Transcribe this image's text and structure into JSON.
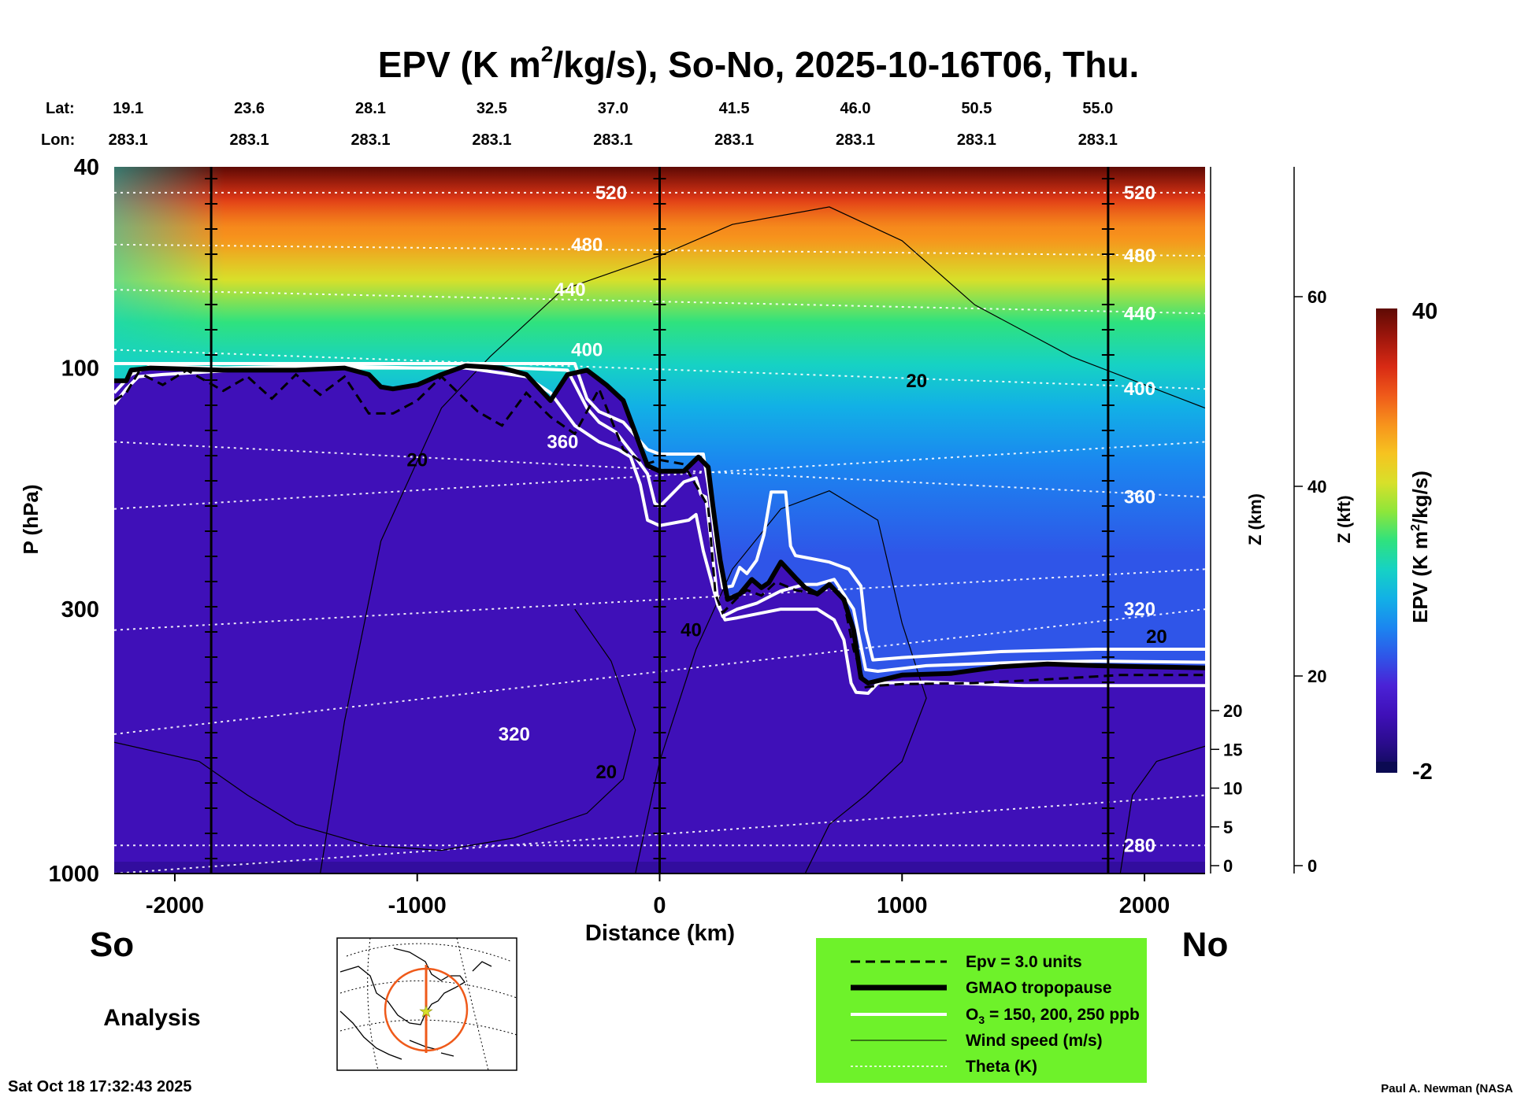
{
  "chart_data": {
    "type": "heatmap",
    "title": "EPV (K m2/kg/s), So-No, 2025-10-16T06, Thu.",
    "title_parts": {
      "pre": "EPV (K m",
      "sup": "2",
      "post": "/kg/s), So-No, 2025-10-16T06, Thu."
    },
    "xlabel": "Distance (km)",
    "ylabel": "P (hPa)",
    "z_km_label": "Z (km)",
    "z_kft_label": "Z (kft)",
    "colorbar_label_parts": {
      "pre": "EPV (K m",
      "sup": "2",
      "post": "/kg/s)"
    },
    "xlim": [
      -2250,
      2250
    ],
    "ylim_hpa": [
      1000,
      40
    ],
    "x_ticks": [
      {
        "value": -2000,
        "label": "-2000"
      },
      {
        "value": -1000,
        "label": "-1000"
      },
      {
        "value": 0,
        "label": "0"
      },
      {
        "value": 1000,
        "label": "1000"
      },
      {
        "value": 2000,
        "label": "2000"
      }
    ],
    "p_ticks": [
      {
        "value": 40,
        "label": "40"
      },
      {
        "value": 100,
        "label": "100"
      },
      {
        "value": 300,
        "label": "300"
      },
      {
        "value": 1000,
        "label": "1000"
      }
    ],
    "z_km_ticks": [
      {
        "value": 20,
        "label": "20"
      },
      {
        "value": 15,
        "label": "15"
      },
      {
        "value": 10,
        "label": "10"
      },
      {
        "value": 5,
        "label": "5"
      },
      {
        "value": 0,
        "label": "0"
      }
    ],
    "z_kft_ticks": [
      {
        "value": 60,
        "label": "60"
      },
      {
        "value": 40,
        "label": "40"
      },
      {
        "value": 20,
        "label": "20"
      },
      {
        "value": 0,
        "label": "0"
      }
    ],
    "lat_label": "Lat:",
    "lon_label": "Lon:",
    "lats": [
      "19.1",
      "23.6",
      "28.1",
      "32.5",
      "37.0",
      "41.5",
      "46.0",
      "50.5",
      "55.0"
    ],
    "lons": [
      "283.1",
      "283.1",
      "283.1",
      "283.1",
      "283.1",
      "283.1",
      "283.1",
      "283.1",
      "283.1"
    ],
    "lat_positions_km": [
      -2225,
      -1725,
      -1225,
      -725,
      -225,
      275,
      775,
      1275,
      1775
    ],
    "vertical_lines_km": [
      -1850,
      0,
      1850
    ],
    "colorbar": {
      "min": -2,
      "max": 40,
      "min_label": "-2",
      "max_label": "40",
      "colors": [
        "#0b0a52",
        "#2a0c8c",
        "#3f10b8",
        "#4a22d6",
        "#2f55e8",
        "#1b86f0",
        "#12b0e6",
        "#16d2c4",
        "#2fe27e",
        "#8ee63a",
        "#d8e02a",
        "#f6c320",
        "#f7931c",
        "#ef5a1a",
        "#d82a14",
        "#9e160c",
        "#5e0a04"
      ]
    },
    "theta_labels": [
      {
        "x": -200,
        "p": 45,
        "label": "520"
      },
      {
        "x": -300,
        "p": 57,
        "label": "480"
      },
      {
        "x": -370,
        "p": 70,
        "label": "440"
      },
      {
        "x": -300,
        "p": 92,
        "label": "400"
      },
      {
        "x": -400,
        "p": 140,
        "label": "360"
      },
      {
        "x": -600,
        "p": 530,
        "label": "320"
      },
      {
        "x": 1980,
        "p": 45,
        "label": "520"
      },
      {
        "x": 1980,
        "p": 60,
        "label": "480"
      },
      {
        "x": 1980,
        "p": 78,
        "label": "440"
      },
      {
        "x": 1980,
        "p": 110,
        "label": "400"
      },
      {
        "x": 1980,
        "p": 180,
        "label": "360"
      },
      {
        "x": 1980,
        "p": 300,
        "label": "320"
      },
      {
        "x": 1980,
        "p": 880,
        "label": "280"
      }
    ],
    "wind_labels": [
      {
        "x": -1000,
        "p": 152,
        "label": "20"
      },
      {
        "x": 1060,
        "p": 106,
        "label": "20"
      },
      {
        "x": 2050,
        "p": 340,
        "label": "20"
      },
      {
        "x": -220,
        "p": 630,
        "label": "20"
      },
      {
        "x": 130,
        "p": 330,
        "label": "40"
      }
    ],
    "tropopause_gmao": [
      [
        -2250,
        106
      ],
      [
        -2200,
        106
      ],
      [
        -2180,
        101
      ],
      [
        -2100,
        100
      ],
      [
        -1800,
        101
      ],
      [
        -1500,
        101
      ],
      [
        -1300,
        100
      ],
      [
        -1200,
        103
      ],
      [
        -1150,
        109
      ],
      [
        -1100,
        110
      ],
      [
        -1000,
        108
      ],
      [
        -900,
        103
      ],
      [
        -800,
        99
      ],
      [
        -650,
        100
      ],
      [
        -550,
        103
      ],
      [
        -450,
        116
      ],
      [
        -380,
        103
      ],
      [
        -300,
        101
      ],
      [
        -220,
        108
      ],
      [
        -150,
        116
      ],
      [
        -50,
        156
      ],
      [
        0,
        160
      ],
      [
        100,
        160
      ],
      [
        160,
        150
      ],
      [
        200,
        157
      ],
      [
        220,
        188
      ],
      [
        250,
        240
      ],
      [
        280,
        287
      ],
      [
        330,
        280
      ],
      [
        380,
        262
      ],
      [
        420,
        272
      ],
      [
        450,
        266
      ],
      [
        500,
        242
      ],
      [
        560,
        260
      ],
      [
        600,
        272
      ],
      [
        650,
        280
      ],
      [
        700,
        268
      ],
      [
        760,
        287
      ],
      [
        800,
        330
      ],
      [
        830,
        410
      ],
      [
        860,
        420
      ],
      [
        1000,
        405
      ],
      [
        1200,
        402
      ],
      [
        1400,
        390
      ],
      [
        1600,
        385
      ],
      [
        1800,
        388
      ],
      [
        2000,
        390
      ],
      [
        2250,
        392
      ]
    ],
    "epv3_dashed": [
      [
        -2250,
        116
      ],
      [
        -2200,
        112
      ],
      [
        -2150,
        102
      ],
      [
        -2050,
        108
      ],
      [
        -1950,
        101
      ],
      [
        -1800,
        111
      ],
      [
        -1700,
        104
      ],
      [
        -1600,
        115
      ],
      [
        -1500,
        103
      ],
      [
        -1400,
        113
      ],
      [
        -1300,
        104
      ],
      [
        -1200,
        123
      ],
      [
        -1100,
        123
      ],
      [
        -1000,
        116
      ],
      [
        -900,
        104
      ],
      [
        -750,
        122
      ],
      [
        -650,
        130
      ],
      [
        -550,
        112
      ],
      [
        -450,
        125
      ],
      [
        -350,
        135
      ],
      [
        -250,
        110
      ],
      [
        -150,
        145
      ],
      [
        -60,
        155
      ],
      [
        0,
        152
      ],
      [
        100,
        155
      ],
      [
        200,
        188
      ],
      [
        230,
        280
      ],
      [
        260,
        305
      ],
      [
        320,
        285
      ],
      [
        360,
        275
      ],
      [
        420,
        282
      ],
      [
        480,
        265
      ],
      [
        560,
        275
      ],
      [
        640,
        280
      ],
      [
        700,
        268
      ],
      [
        760,
        290
      ],
      [
        800,
        360
      ],
      [
        850,
        428
      ],
      [
        900,
        425
      ],
      [
        1000,
        422
      ],
      [
        1300,
        420
      ],
      [
        1600,
        413
      ],
      [
        1900,
        405
      ],
      [
        2250,
        405
      ]
    ],
    "ozone_contours": [
      [
        [
          -2250,
          98
        ],
        [
          -1800,
          98
        ],
        [
          -1200,
          98
        ],
        [
          -600,
          98
        ],
        [
          -350,
          98
        ],
        [
          -300,
          115
        ],
        [
          -250,
          122
        ],
        [
          -150,
          128
        ],
        [
          -50,
          145
        ],
        [
          0,
          148
        ],
        [
          100,
          148
        ],
        [
          180,
          148
        ],
        [
          200,
          170
        ],
        [
          230,
          220
        ],
        [
          260,
          272
        ],
        [
          300,
          270
        ],
        [
          330,
          248
        ],
        [
          360,
          255
        ],
        [
          400,
          240
        ],
        [
          430,
          214
        ],
        [
          460,
          176
        ],
        [
          520,
          176
        ],
        [
          540,
          225
        ],
        [
          560,
          235
        ],
        [
          620,
          238
        ],
        [
          700,
          242
        ],
        [
          780,
          250
        ],
        [
          830,
          270
        ],
        [
          850,
          330
        ],
        [
          880,
          378
        ],
        [
          1000,
          374
        ],
        [
          1400,
          364
        ],
        [
          1800,
          360
        ],
        [
          2250,
          360
        ]
      ],
      [
        [
          -2250,
          112
        ],
        [
          -2180,
          103
        ],
        [
          -2100,
          99
        ],
        [
          -1800,
          100
        ],
        [
          -1400,
          99
        ],
        [
          -1000,
          100
        ],
        [
          -600,
          100
        ],
        [
          -380,
          101
        ],
        [
          -300,
          120
        ],
        [
          -250,
          128
        ],
        [
          -180,
          134
        ],
        [
          -100,
          150
        ],
        [
          -50,
          162
        ],
        [
          -20,
          185
        ],
        [
          0,
          188
        ],
        [
          100,
          168
        ],
        [
          150,
          165
        ],
        [
          170,
          178
        ],
        [
          190,
          180
        ],
        [
          210,
          215
        ],
        [
          240,
          290
        ],
        [
          260,
          310
        ],
        [
          320,
          300
        ],
        [
          400,
          292
        ],
        [
          500,
          276
        ],
        [
          600,
          268
        ],
        [
          650,
          268
        ],
        [
          720,
          262
        ],
        [
          800,
          300
        ],
        [
          850,
          395
        ],
        [
          900,
          398
        ],
        [
          1100,
          388
        ],
        [
          1500,
          382
        ],
        [
          1800,
          380
        ],
        [
          2250,
          382
        ]
      ],
      [
        [
          -2250,
          118
        ],
        [
          -2200,
          110
        ],
        [
          -2150,
          104
        ],
        [
          -2050,
          103
        ],
        [
          -1900,
          102
        ],
        [
          -1600,
          100
        ],
        [
          -1200,
          100
        ],
        [
          -800,
          100
        ],
        [
          -550,
          104
        ],
        [
          -450,
          112
        ],
        [
          -350,
          130
        ],
        [
          -250,
          140
        ],
        [
          -170,
          145
        ],
        [
          -120,
          150
        ],
        [
          -80,
          170
        ],
        [
          -50,
          200
        ],
        [
          0,
          205
        ],
        [
          120,
          200
        ],
        [
          150,
          195
        ],
        [
          180,
          230
        ],
        [
          210,
          260
        ],
        [
          240,
          295
        ],
        [
          270,
          315
        ],
        [
          320,
          312
        ],
        [
          500,
          300
        ],
        [
          650,
          300
        ],
        [
          720,
          315
        ],
        [
          760,
          345
        ],
        [
          790,
          420
        ],
        [
          810,
          438
        ],
        [
          860,
          440
        ],
        [
          900,
          420
        ],
        [
          1100,
          418
        ],
        [
          1500,
          425
        ],
        [
          1800,
          425
        ],
        [
          2250,
          425
        ]
      ]
    ],
    "south_label": "So",
    "north_label": "No",
    "analysis_label": "Analysis",
    "legend": {
      "background": "#6ef22a",
      "items": [
        {
          "label": "Epv = 3.0 units",
          "style": "dashed"
        },
        {
          "label": "GMAO tropopause",
          "style": "thick"
        },
        {
          "label_pre": "O",
          "label_sub": "3",
          "label_post": " = 150, 200, 250 ppb",
          "label": "O3 = 150, 200, 250 ppb",
          "style": "white"
        },
        {
          "label": "Wind speed (m/s)",
          "style": "thin"
        },
        {
          "label": "Theta (K)",
          "style": "dotted"
        }
      ]
    },
    "timestamp": "Sat Oct 18 17:32:43 2025",
    "credit": "Paul A. Newman (NASA"
  }
}
